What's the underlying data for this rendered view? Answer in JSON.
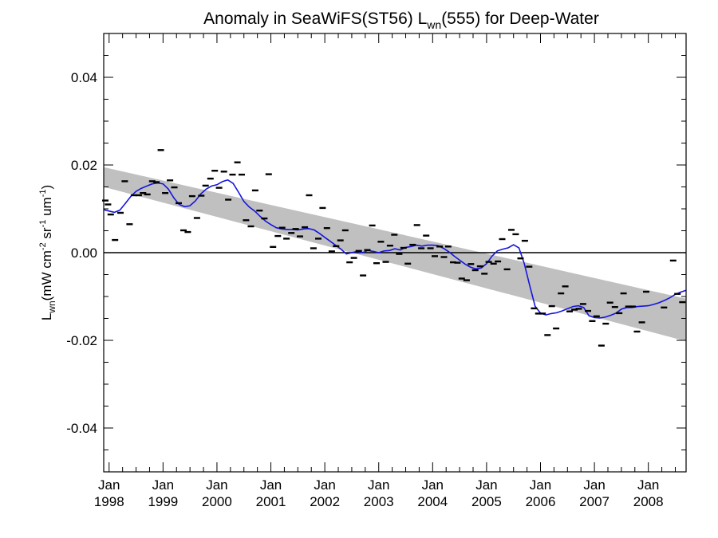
{
  "chart_data": {
    "type": "scatter",
    "title": "Anomaly in SeaWiFS(ST56) L",
    "title_sub": "wn",
    "title_tail": "(555) for Deep-Water",
    "ylabel_main": "L",
    "ylabel_sub": "wn",
    "ylabel_units": "(mW cm",
    "ylabel_units_parts": [
      "(mW cm",
      "-2",
      " sr",
      "-1",
      " um",
      "-1",
      ")"
    ],
    "ylim": [
      -0.05,
      0.05
    ],
    "xlim": [
      1997.9,
      2008.7
    ],
    "y_ticks": [
      {
        "v": 0.04,
        "label": "0.04"
      },
      {
        "v": 0.02,
        "label": "0.02"
      },
      {
        "v": 0.0,
        "label": "0.00"
      },
      {
        "v": -0.02,
        "label": "-0.02"
      },
      {
        "v": -0.04,
        "label": "-0.04"
      }
    ],
    "x_ticks": [
      {
        "v": 1998,
        "month": "Jan",
        "year": "1998"
      },
      {
        "v": 1999,
        "month": "Jan",
        "year": "1999"
      },
      {
        "v": 2000,
        "month": "Jan",
        "year": "2000"
      },
      {
        "v": 2001,
        "month": "Jan",
        "year": "2001"
      },
      {
        "v": 2002,
        "month": "Jan",
        "year": "2002"
      },
      {
        "v": 2003,
        "month": "Jan",
        "year": "2003"
      },
      {
        "v": 2004,
        "month": "Jan",
        "year": "2004"
      },
      {
        "v": 2005,
        "month": "Jan",
        "year": "2005"
      },
      {
        "v": 2006,
        "month": "Jan",
        "year": "2006"
      },
      {
        "v": 2007,
        "month": "Jan",
        "year": "2007"
      },
      {
        "v": 2008,
        "month": "Jan",
        "year": "2008"
      }
    ],
    "trend_band": {
      "x": [
        1997.9,
        2008.7
      ],
      "upper": [
        0.0195,
        -0.0105
      ],
      "lower": [
        0.015,
        -0.0202
      ],
      "color": "#c0c0c0"
    },
    "zero_line": 0.0,
    "points": [
      [
        1997.93,
        0.0119
      ],
      [
        1997.98,
        0.011
      ],
      [
        1998.03,
        0.0087
      ],
      [
        1998.11,
        0.0029
      ],
      [
        1998.21,
        0.0091
      ],
      [
        1998.29,
        0.0163
      ],
      [
        1998.38,
        0.0065
      ],
      [
        1998.46,
        0.0131
      ],
      [
        1998.55,
        0.0131
      ],
      [
        1998.63,
        0.0136
      ],
      [
        1998.71,
        0.0133
      ],
      [
        1998.8,
        0.0163
      ],
      [
        1998.88,
        0.0161
      ],
      [
        1998.96,
        0.0234
      ],
      [
        1999.04,
        0.0136
      ],
      [
        1999.13,
        0.0165
      ],
      [
        1999.21,
        0.0149
      ],
      [
        1999.29,
        0.0113
      ],
      [
        1999.38,
        0.0051
      ],
      [
        1999.46,
        0.0047
      ],
      [
        1999.54,
        0.0129
      ],
      [
        1999.63,
        0.0079
      ],
      [
        1999.71,
        0.013
      ],
      [
        1999.79,
        0.0153
      ],
      [
        1999.88,
        0.0169
      ],
      [
        1999.96,
        0.0187
      ],
      [
        2000.04,
        0.0148
      ],
      [
        2000.13,
        0.0185
      ],
      [
        2000.21,
        0.0121
      ],
      [
        2000.29,
        0.0178
      ],
      [
        2000.38,
        0.0206
      ],
      [
        2000.46,
        0.0178
      ],
      [
        2000.54,
        0.0074
      ],
      [
        2000.63,
        0.006
      ],
      [
        2000.71,
        0.0142
      ],
      [
        2000.79,
        0.0096
      ],
      [
        2000.88,
        0.0078
      ],
      [
        2000.96,
        0.0179
      ],
      [
        2001.04,
        0.0013
      ],
      [
        2001.13,
        0.0038
      ],
      [
        2001.21,
        0.0057
      ],
      [
        2001.29,
        0.0032
      ],
      [
        2001.38,
        0.0045
      ],
      [
        2001.46,
        0.0054
      ],
      [
        2001.54,
        0.0037
      ],
      [
        2001.63,
        0.0058
      ],
      [
        2001.71,
        0.0131
      ],
      [
        2001.79,
        0.001
      ],
      [
        2001.88,
        0.0032
      ],
      [
        2001.96,
        0.0102
      ],
      [
        2002.04,
        0.0056
      ],
      [
        2002.13,
        0.0003
      ],
      [
        2002.21,
        0.0015
      ],
      [
        2002.29,
        0.0028
      ],
      [
        2002.38,
        0.0051
      ],
      [
        2002.46,
        -0.0022
      ],
      [
        2002.54,
        -0.0012
      ],
      [
        2002.63,
        0.0004
      ],
      [
        2002.71,
        -0.0052
      ],
      [
        2002.79,
        0.0006
      ],
      [
        2002.88,
        0.0062
      ],
      [
        2002.96,
        -0.0024
      ],
      [
        2003.04,
        0.0025
      ],
      [
        2003.13,
        -0.0021
      ],
      [
        2003.21,
        0.0016
      ],
      [
        2003.29,
        0.0041
      ],
      [
        2003.38,
        -0.0003
      ],
      [
        2003.46,
        0.0011
      ],
      [
        2003.54,
        -0.0025
      ],
      [
        2003.63,
        0.0018
      ],
      [
        2003.71,
        0.0063
      ],
      [
        2003.79,
        0.001
      ],
      [
        2003.88,
        0.0039
      ],
      [
        2003.96,
        0.001
      ],
      [
        2004.04,
        -0.0008
      ],
      [
        2004.13,
        0.0014
      ],
      [
        2004.21,
        -0.001
      ],
      [
        2004.29,
        0.0014
      ],
      [
        2004.38,
        -0.0022
      ],
      [
        2004.46,
        -0.0023
      ],
      [
        2004.54,
        -0.0059
      ],
      [
        2004.63,
        -0.0063
      ],
      [
        2004.71,
        -0.0026
      ],
      [
        2004.79,
        -0.004
      ],
      [
        2004.88,
        -0.0031
      ],
      [
        2004.96,
        -0.0048
      ],
      [
        2005.04,
        -0.0021
      ],
      [
        2005.13,
        -0.0025
      ],
      [
        2005.21,
        -0.002
      ],
      [
        2005.29,
        0.0031
      ],
      [
        2005.38,
        -0.0038
      ],
      [
        2005.46,
        0.0052
      ],
      [
        2005.54,
        0.0042
      ],
      [
        2005.63,
        -0.0013
      ],
      [
        2005.71,
        0.0027
      ],
      [
        2005.79,
        -0.0032
      ],
      [
        2005.88,
        -0.0127
      ],
      [
        2005.96,
        -0.0139
      ],
      [
        2006.04,
        -0.0139
      ],
      [
        2006.13,
        -0.0188
      ],
      [
        2006.21,
        -0.0122
      ],
      [
        2006.29,
        -0.0173
      ],
      [
        2006.38,
        -0.0093
      ],
      [
        2006.46,
        -0.0077
      ],
      [
        2006.54,
        -0.0134
      ],
      [
        2006.63,
        -0.013
      ],
      [
        2006.71,
        -0.0128
      ],
      [
        2006.79,
        -0.0117
      ],
      [
        2006.88,
        -0.0133
      ],
      [
        2006.96,
        -0.0156
      ],
      [
        2007.04,
        -0.0145
      ],
      [
        2007.13,
        -0.0212
      ],
      [
        2007.21,
        -0.0162
      ],
      [
        2007.29,
        -0.0114
      ],
      [
        2007.38,
        -0.0124
      ],
      [
        2007.46,
        -0.0138
      ],
      [
        2007.54,
        -0.0093
      ],
      [
        2007.63,
        -0.0123
      ],
      [
        2007.71,
        -0.0123
      ],
      [
        2007.79,
        -0.018
      ],
      [
        2007.88,
        -0.0159
      ],
      [
        2007.96,
        -0.0089
      ],
      [
        2008.29,
        -0.0125
      ],
      [
        2008.46,
        -0.0018
      ],
      [
        2008.54,
        -0.0094
      ],
      [
        2008.63,
        -0.0113
      ]
    ],
    "smooth": [
      [
        1997.9,
        0.0098
      ],
      [
        1998.0,
        0.0095
      ],
      [
        1998.1,
        0.0092
      ],
      [
        1998.2,
        0.0097
      ],
      [
        1998.3,
        0.0112
      ],
      [
        1998.4,
        0.0128
      ],
      [
        1998.5,
        0.014
      ],
      [
        1998.6,
        0.0147
      ],
      [
        1998.7,
        0.0152
      ],
      [
        1998.8,
        0.0157
      ],
      [
        1998.9,
        0.0159
      ],
      [
        1999.0,
        0.0157
      ],
      [
        1999.1,
        0.0145
      ],
      [
        1999.2,
        0.0125
      ],
      [
        1999.3,
        0.011
      ],
      [
        1999.4,
        0.0105
      ],
      [
        1999.5,
        0.0107
      ],
      [
        1999.6,
        0.0118
      ],
      [
        1999.7,
        0.0134
      ],
      [
        1999.8,
        0.0145
      ],
      [
        1999.9,
        0.0152
      ],
      [
        2000.0,
        0.0155
      ],
      [
        2000.1,
        0.0162
      ],
      [
        2000.2,
        0.0166
      ],
      [
        2000.3,
        0.0158
      ],
      [
        2000.4,
        0.0138
      ],
      [
        2000.5,
        0.0117
      ],
      [
        2000.6,
        0.0104
      ],
      [
        2000.7,
        0.0095
      ],
      [
        2000.8,
        0.0083
      ],
      [
        2000.9,
        0.0072
      ],
      [
        2001.0,
        0.0064
      ],
      [
        2001.1,
        0.0057
      ],
      [
        2001.2,
        0.0054
      ],
      [
        2001.3,
        0.0053
      ],
      [
        2001.4,
        0.0053
      ],
      [
        2001.5,
        0.0052
      ],
      [
        2001.6,
        0.0054
      ],
      [
        2001.7,
        0.0055
      ],
      [
        2001.8,
        0.0052
      ],
      [
        2001.9,
        0.0044
      ],
      [
        2002.0,
        0.0035
      ],
      [
        2002.1,
        0.0026
      ],
      [
        2002.2,
        0.0017
      ],
      [
        2002.3,
        0.0008
      ],
      [
        2002.4,
        -0.0003
      ],
      [
        2002.5,
        0.0
      ],
      [
        2002.6,
        0.0003
      ],
      [
        2002.7,
        0.0
      ],
      [
        2002.8,
        0.0005
      ],
      [
        2002.9,
        0.0003
      ],
      [
        2003.0,
        0.0
      ],
      [
        2003.1,
        0.0004
      ],
      [
        2003.2,
        0.0005
      ],
      [
        2003.3,
        0.0009
      ],
      [
        2003.4,
        0.0006
      ],
      [
        2003.5,
        0.0012
      ],
      [
        2003.6,
        0.0014
      ],
      [
        2003.7,
        0.0017
      ],
      [
        2003.8,
        0.0015
      ],
      [
        2003.9,
        0.0017
      ],
      [
        2004.0,
        0.0017
      ],
      [
        2004.1,
        0.0016
      ],
      [
        2004.2,
        0.001
      ],
      [
        2004.3,
        0.0002
      ],
      [
        2004.4,
        -0.0008
      ],
      [
        2004.5,
        -0.0017
      ],
      [
        2004.6,
        -0.0026
      ],
      [
        2004.7,
        -0.0033
      ],
      [
        2004.8,
        -0.0037
      ],
      [
        2004.9,
        -0.0035
      ],
      [
        2005.0,
        -0.0025
      ],
      [
        2005.1,
        -0.0008
      ],
      [
        2005.2,
        0.0004
      ],
      [
        2005.3,
        0.0008
      ],
      [
        2005.4,
        0.0011
      ],
      [
        2005.5,
        0.0018
      ],
      [
        2005.6,
        0.0011
      ],
      [
        2005.7,
        -0.0025
      ],
      [
        2005.8,
        -0.0075
      ],
      [
        2005.9,
        -0.0122
      ],
      [
        2006.0,
        -0.0138
      ],
      [
        2006.1,
        -0.0142
      ],
      [
        2006.2,
        -0.0139
      ],
      [
        2006.3,
        -0.0137
      ],
      [
        2006.4,
        -0.0133
      ],
      [
        2006.5,
        -0.0128
      ],
      [
        2006.6,
        -0.0123
      ],
      [
        2006.7,
        -0.0121
      ],
      [
        2006.8,
        -0.0125
      ],
      [
        2006.9,
        -0.0144
      ],
      [
        2007.0,
        -0.0148
      ],
      [
        2007.1,
        -0.0149
      ],
      [
        2007.2,
        -0.0147
      ],
      [
        2007.3,
        -0.0143
      ],
      [
        2007.4,
        -0.0138
      ],
      [
        2007.5,
        -0.0129
      ],
      [
        2007.6,
        -0.0125
      ],
      [
        2007.7,
        -0.0125
      ],
      [
        2007.8,
        -0.0123
      ],
      [
        2007.9,
        -0.0122
      ],
      [
        2008.0,
        -0.0121
      ],
      [
        2008.1,
        -0.0118
      ],
      [
        2008.2,
        -0.0114
      ],
      [
        2008.3,
        -0.0109
      ],
      [
        2008.4,
        -0.0103
      ],
      [
        2008.5,
        -0.0095
      ],
      [
        2008.6,
        -0.009
      ],
      [
        2008.7,
        -0.0086
      ]
    ],
    "colors": {
      "smooth_line": "#1515e0",
      "points": "#000000",
      "band": "#c0c0c0",
      "axes": "#000000"
    },
    "grid": false,
    "legend": "none"
  }
}
